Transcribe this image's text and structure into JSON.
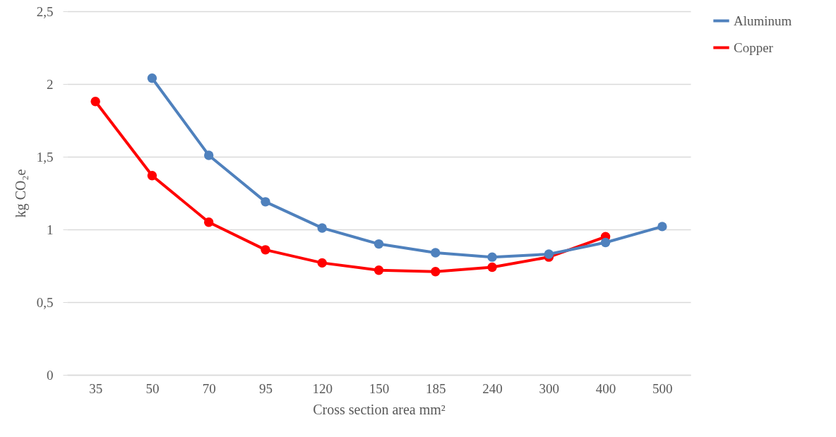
{
  "chart_data": {
    "type": "line",
    "xlabel": "Cross section area mm²",
    "ylabel": "kg CO₂e",
    "categories": [
      "35",
      "50",
      "70",
      "95",
      "120",
      "150",
      "185",
      "240",
      "300",
      "400",
      "500"
    ],
    "series": [
      {
        "name": "Aluminum",
        "color": "#4f81bd",
        "values": [
          null,
          2.04,
          1.51,
          1.19,
          1.01,
          0.9,
          0.84,
          0.81,
          0.83,
          0.91,
          1.02
        ]
      },
      {
        "name": "Copper",
        "color": "#ff0000",
        "values": [
          1.88,
          1.37,
          1.05,
          0.86,
          0.77,
          0.72,
          0.71,
          0.74,
          0.81,
          0.95,
          null
        ]
      }
    ],
    "ylim": [
      0,
      2.5
    ],
    "yticks": [
      0,
      {
        "value": 0.5,
        "label": "0,5"
      },
      1,
      {
        "value": 1.5,
        "label": "1,5"
      },
      2,
      {
        "value": 2.5,
        "label": "2,5"
      }
    ],
    "grid": "y",
    "legend": "right",
    "marker": "circle",
    "line_style": "solid"
  }
}
